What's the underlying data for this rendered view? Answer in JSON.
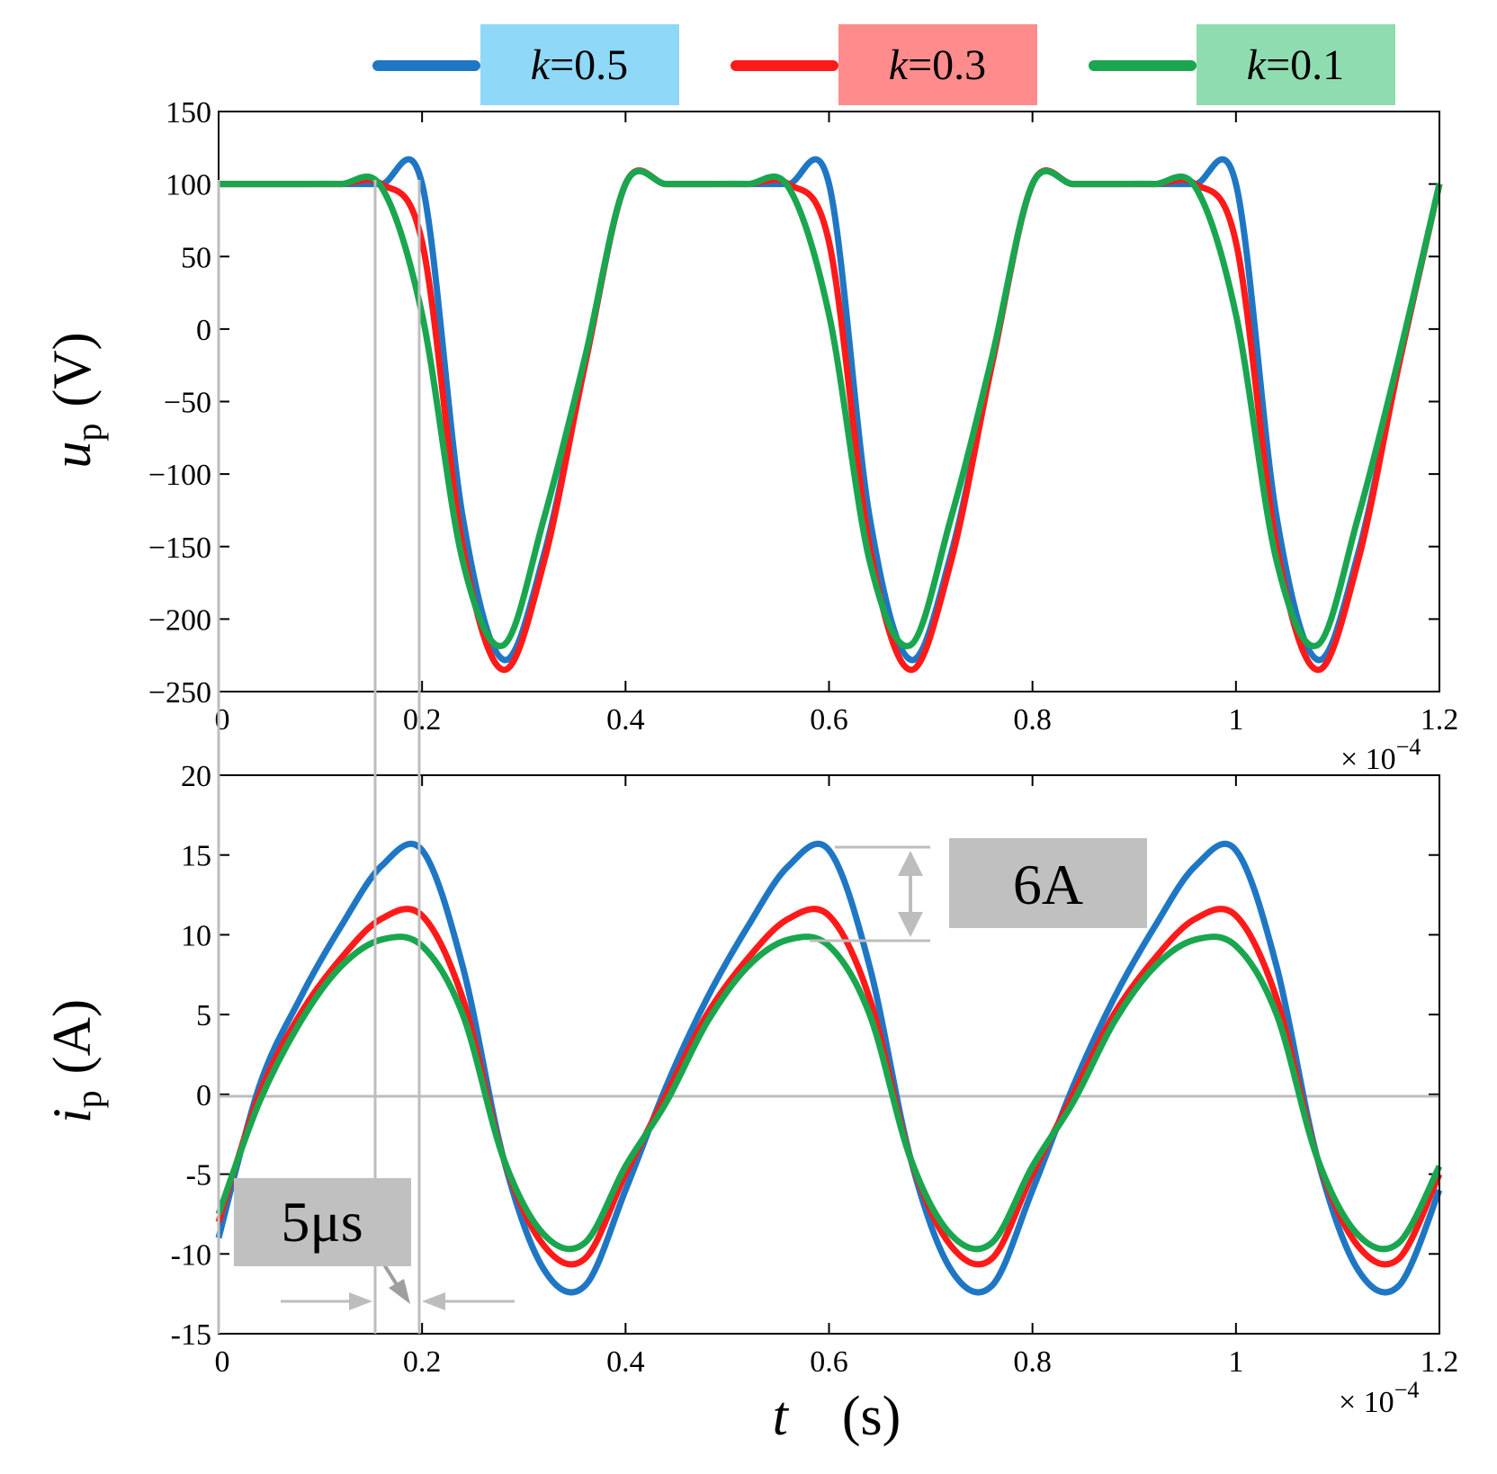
{
  "chart_data": [
    {
      "type": "line",
      "ylabel_var": "u",
      "ylabel_sub": "p",
      "ylabel_unit": "(V)",
      "xlim": [
        0,
        1.2
      ],
      "ylim": [
        -250,
        150
      ],
      "xticks": [
        "0",
        "0.2",
        "0.4",
        "0.6",
        "0.8",
        "1",
        "1.2"
      ],
      "yticks": [
        "150",
        "100",
        "50",
        "0",
        "−50",
        "−100",
        "−150",
        "−200",
        "−250"
      ],
      "xscale_label": "× 10",
      "xscale_exp": "−4",
      "x": [
        0,
        0.04,
        0.08,
        0.12,
        0.16,
        0.2,
        0.24,
        0.28,
        0.32,
        0.36,
        0.4
      ],
      "series": [
        {
          "name": "k=0.5",
          "color": "#1f77c4",
          "values": [
            100,
            100,
            100,
            100,
            100,
            100,
            -130,
            -228,
            -155,
            -25,
            100
          ],
          "period": 0.4
        },
        {
          "name": "k=0.3",
          "color": "#ff1a1a",
          "values": [
            100,
            100,
            100,
            100,
            100,
            60,
            -150,
            -235,
            -160,
            -25,
            100
          ],
          "period": 0.4
        },
        {
          "name": "k=0.1",
          "color": "#1aa64f",
          "values": [
            100,
            100,
            100,
            100,
            98,
            10,
            -160,
            -218,
            -130,
            -20,
            100
          ],
          "period": 0.4
        }
      ]
    },
    {
      "type": "line",
      "ylabel_var": "i",
      "ylabel_sub": "p",
      "ylabel_unit": "(A)",
      "xlabel_var": "t",
      "xlabel_unit": "(s)",
      "xlim": [
        0,
        1.2
      ],
      "ylim": [
        -15,
        20
      ],
      "xticks": [
        "0",
        "0.2",
        "0.4",
        "0.6",
        "0.8",
        "1",
        "1.2"
      ],
      "yticks": [
        "20",
        "15",
        "10",
        "5",
        "0",
        "-5",
        "-10",
        "-15"
      ],
      "xscale_label": "× 10",
      "xscale_exp": "−4",
      "x": [
        0,
        0.04,
        0.08,
        0.12,
        0.16,
        0.2,
        0.24,
        0.28,
        0.32,
        0.36,
        0.4
      ],
      "series": [
        {
          "name": "k=0.5",
          "color": "#1f77c4",
          "values": [
            -9,
            0.5,
            6,
            10.5,
            14.3,
            15.3,
            8,
            -4,
            -11,
            -12,
            -6
          ],
          "period": 0.4
        },
        {
          "name": "k=0.3",
          "color": "#ff1a1a",
          "values": [
            -8,
            0,
            5,
            8.5,
            11,
            11.2,
            6,
            -4,
            -9.5,
            -10.3,
            -5
          ],
          "period": 0.4
        },
        {
          "name": "k=0.1",
          "color": "#1aa64f",
          "values": [
            -7.5,
            -0.5,
            4.5,
            8,
            9.7,
            9.3,
            5,
            -4,
            -8.8,
            -9.3,
            -4.5
          ],
          "period": 0.4
        }
      ],
      "annotations": {
        "amplitude_label": "6A",
        "time_label_num": "5",
        "time_label_unit": "μs"
      }
    }
  ],
  "legend": {
    "items": [
      {
        "var": "k",
        "text": "=0.5",
        "line_color": "#1f77c4",
        "box_color": "#8fd8f8"
      },
      {
        "var": "k",
        "text": "=0.3",
        "line_color": "#ff1a1a",
        "box_color": "#ff8c8c"
      },
      {
        "var": "k",
        "text": "=0.1",
        "line_color": "#1aa64f",
        "box_color": "#8fdcb0"
      }
    ]
  }
}
